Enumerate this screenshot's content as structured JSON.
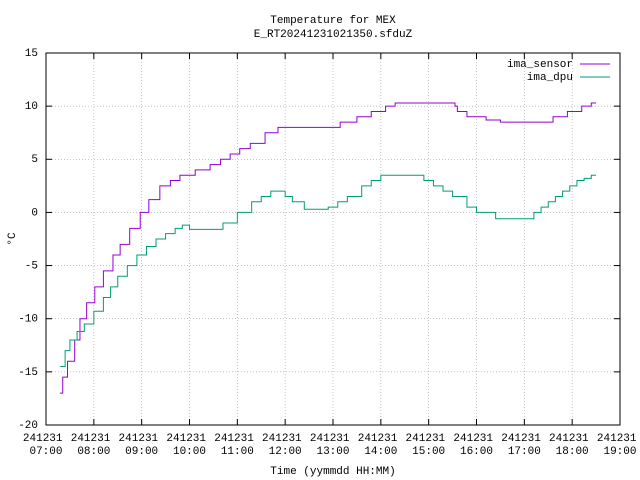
{
  "chart_data": {
    "type": "line",
    "title": "Temperature for MEX",
    "subtitle": "E_RT20241231021350.sfduZ",
    "x_label": "Time (yymmdd HH:MM)",
    "y_label": "°C",
    "steps": true,
    "grid": true,
    "legend": "top-right",
    "xlim": [
      7,
      19
    ],
    "ylim": [
      -20,
      15
    ],
    "xticks": [
      {
        "value": 7,
        "label": "241231 07:00"
      },
      {
        "value": 8,
        "label": "241231 08:00"
      },
      {
        "value": 9,
        "label": "241231 09:00"
      },
      {
        "value": 10,
        "label": "241231 10:00"
      },
      {
        "value": 11,
        "label": "241231 11:00"
      },
      {
        "value": 12,
        "label": "241231 12:00"
      },
      {
        "value": 13,
        "label": "241231 13:00"
      },
      {
        "value": 14,
        "label": "241231 14:00"
      },
      {
        "value": 15,
        "label": "241231 15:00"
      },
      {
        "value": 16,
        "label": "241231 16:00"
      },
      {
        "value": 17,
        "label": "241231 17:00"
      },
      {
        "value": 18,
        "label": "241231 18:00"
      },
      {
        "value": 19,
        "label": "241231 19:00"
      }
    ],
    "yticks": [
      -20,
      -15,
      -10,
      -5,
      0,
      5,
      10,
      15
    ],
    "series": [
      {
        "name": "ima_sensor",
        "color": "#9400d3",
        "x": [
          7.29,
          7.35,
          7.45,
          7.6,
          7.71,
          7.85,
          8.02,
          8.2,
          8.4,
          8.55,
          8.75,
          8.97,
          9.15,
          9.38,
          9.6,
          9.8,
          10.12,
          10.43,
          10.65,
          10.85,
          11.05,
          11.27,
          11.58,
          11.85,
          13.15,
          13.5,
          13.8,
          14.1,
          14.3,
          15.55,
          15.6,
          15.8,
          16.2,
          16.5,
          16.8,
          17.6,
          17.9,
          18.2,
          18.4,
          18.5
        ],
        "values": [
          -17,
          -15.5,
          -14,
          -12,
          -10,
          -8.5,
          -7,
          -5.5,
          -4,
          -3,
          -1.5,
          0,
          1.2,
          2.5,
          3,
          3.5,
          4,
          4.5,
          5,
          5.5,
          6,
          6.5,
          7.5,
          8,
          8.5,
          9,
          9.5,
          10,
          10.3,
          10,
          9.5,
          9,
          8.7,
          8.5,
          8.5,
          9,
          9.5,
          10,
          10.3,
          10.3
        ]
      },
      {
        "name": "ima_dpu",
        "color": "#009e73",
        "x": [
          7.3,
          7.4,
          7.5,
          7.65,
          7.8,
          8.0,
          8.2,
          8.35,
          8.5,
          8.7,
          8.9,
          9.1,
          9.3,
          9.5,
          9.7,
          9.85,
          10.0,
          10.7,
          11.0,
          11.3,
          11.5,
          11.7,
          12.0,
          12.15,
          12.4,
          12.9,
          13.1,
          13.3,
          13.6,
          13.8,
          14.0,
          14.9,
          15.1,
          15.3,
          15.5,
          15.8,
          16.0,
          16.4,
          17.0,
          17.2,
          17.35,
          17.5,
          17.65,
          17.8,
          17.95,
          18.1,
          18.25,
          18.4,
          18.5
        ],
        "values": [
          -14.5,
          -13,
          -12,
          -11.2,
          -10.5,
          -9.3,
          -8,
          -7,
          -6,
          -5,
          -4,
          -3.2,
          -2.5,
          -2,
          -1.5,
          -1.2,
          -1.6,
          -1,
          0,
          1,
          1.5,
          2,
          1.5,
          1,
          0.3,
          0.5,
          1,
          1.5,
          2.5,
          3,
          3.5,
          3,
          2.5,
          2,
          1.5,
          0.5,
          0,
          -0.6,
          -0.6,
          0,
          0.5,
          1,
          1.5,
          2,
          2.5,
          3,
          3.2,
          3.5,
          3.5
        ]
      }
    ]
  }
}
